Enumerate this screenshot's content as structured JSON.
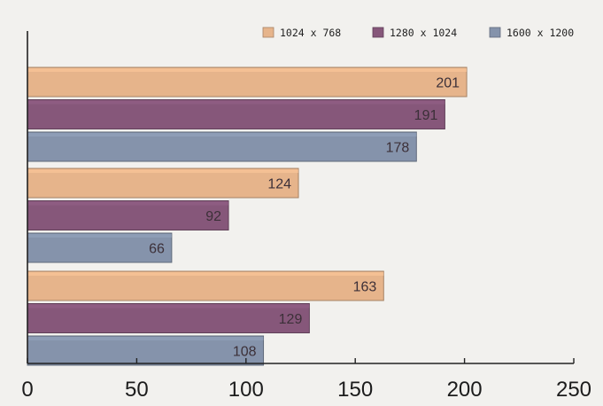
{
  "chart_data": {
    "type": "bar",
    "orientation": "horizontal",
    "title": "",
    "xlabel": "",
    "ylabel": "",
    "xlim": [
      0,
      250
    ],
    "x_ticks": [
      "0",
      "50",
      "100",
      "150",
      "200",
      "250"
    ],
    "groups": 3,
    "series": [
      {
        "name": "1024 x 768",
        "color": "#e6b48b",
        "values": [
          201,
          124,
          163
        ]
      },
      {
        "name": "1280 x 1024",
        "color": "#86577a",
        "values": [
          191,
          92,
          129
        ]
      },
      {
        "name": "1600 x 1200",
        "color": "#8593ab",
        "values": [
          178,
          66,
          108
        ]
      }
    ],
    "legend_position": "top-right",
    "grid": false
  }
}
